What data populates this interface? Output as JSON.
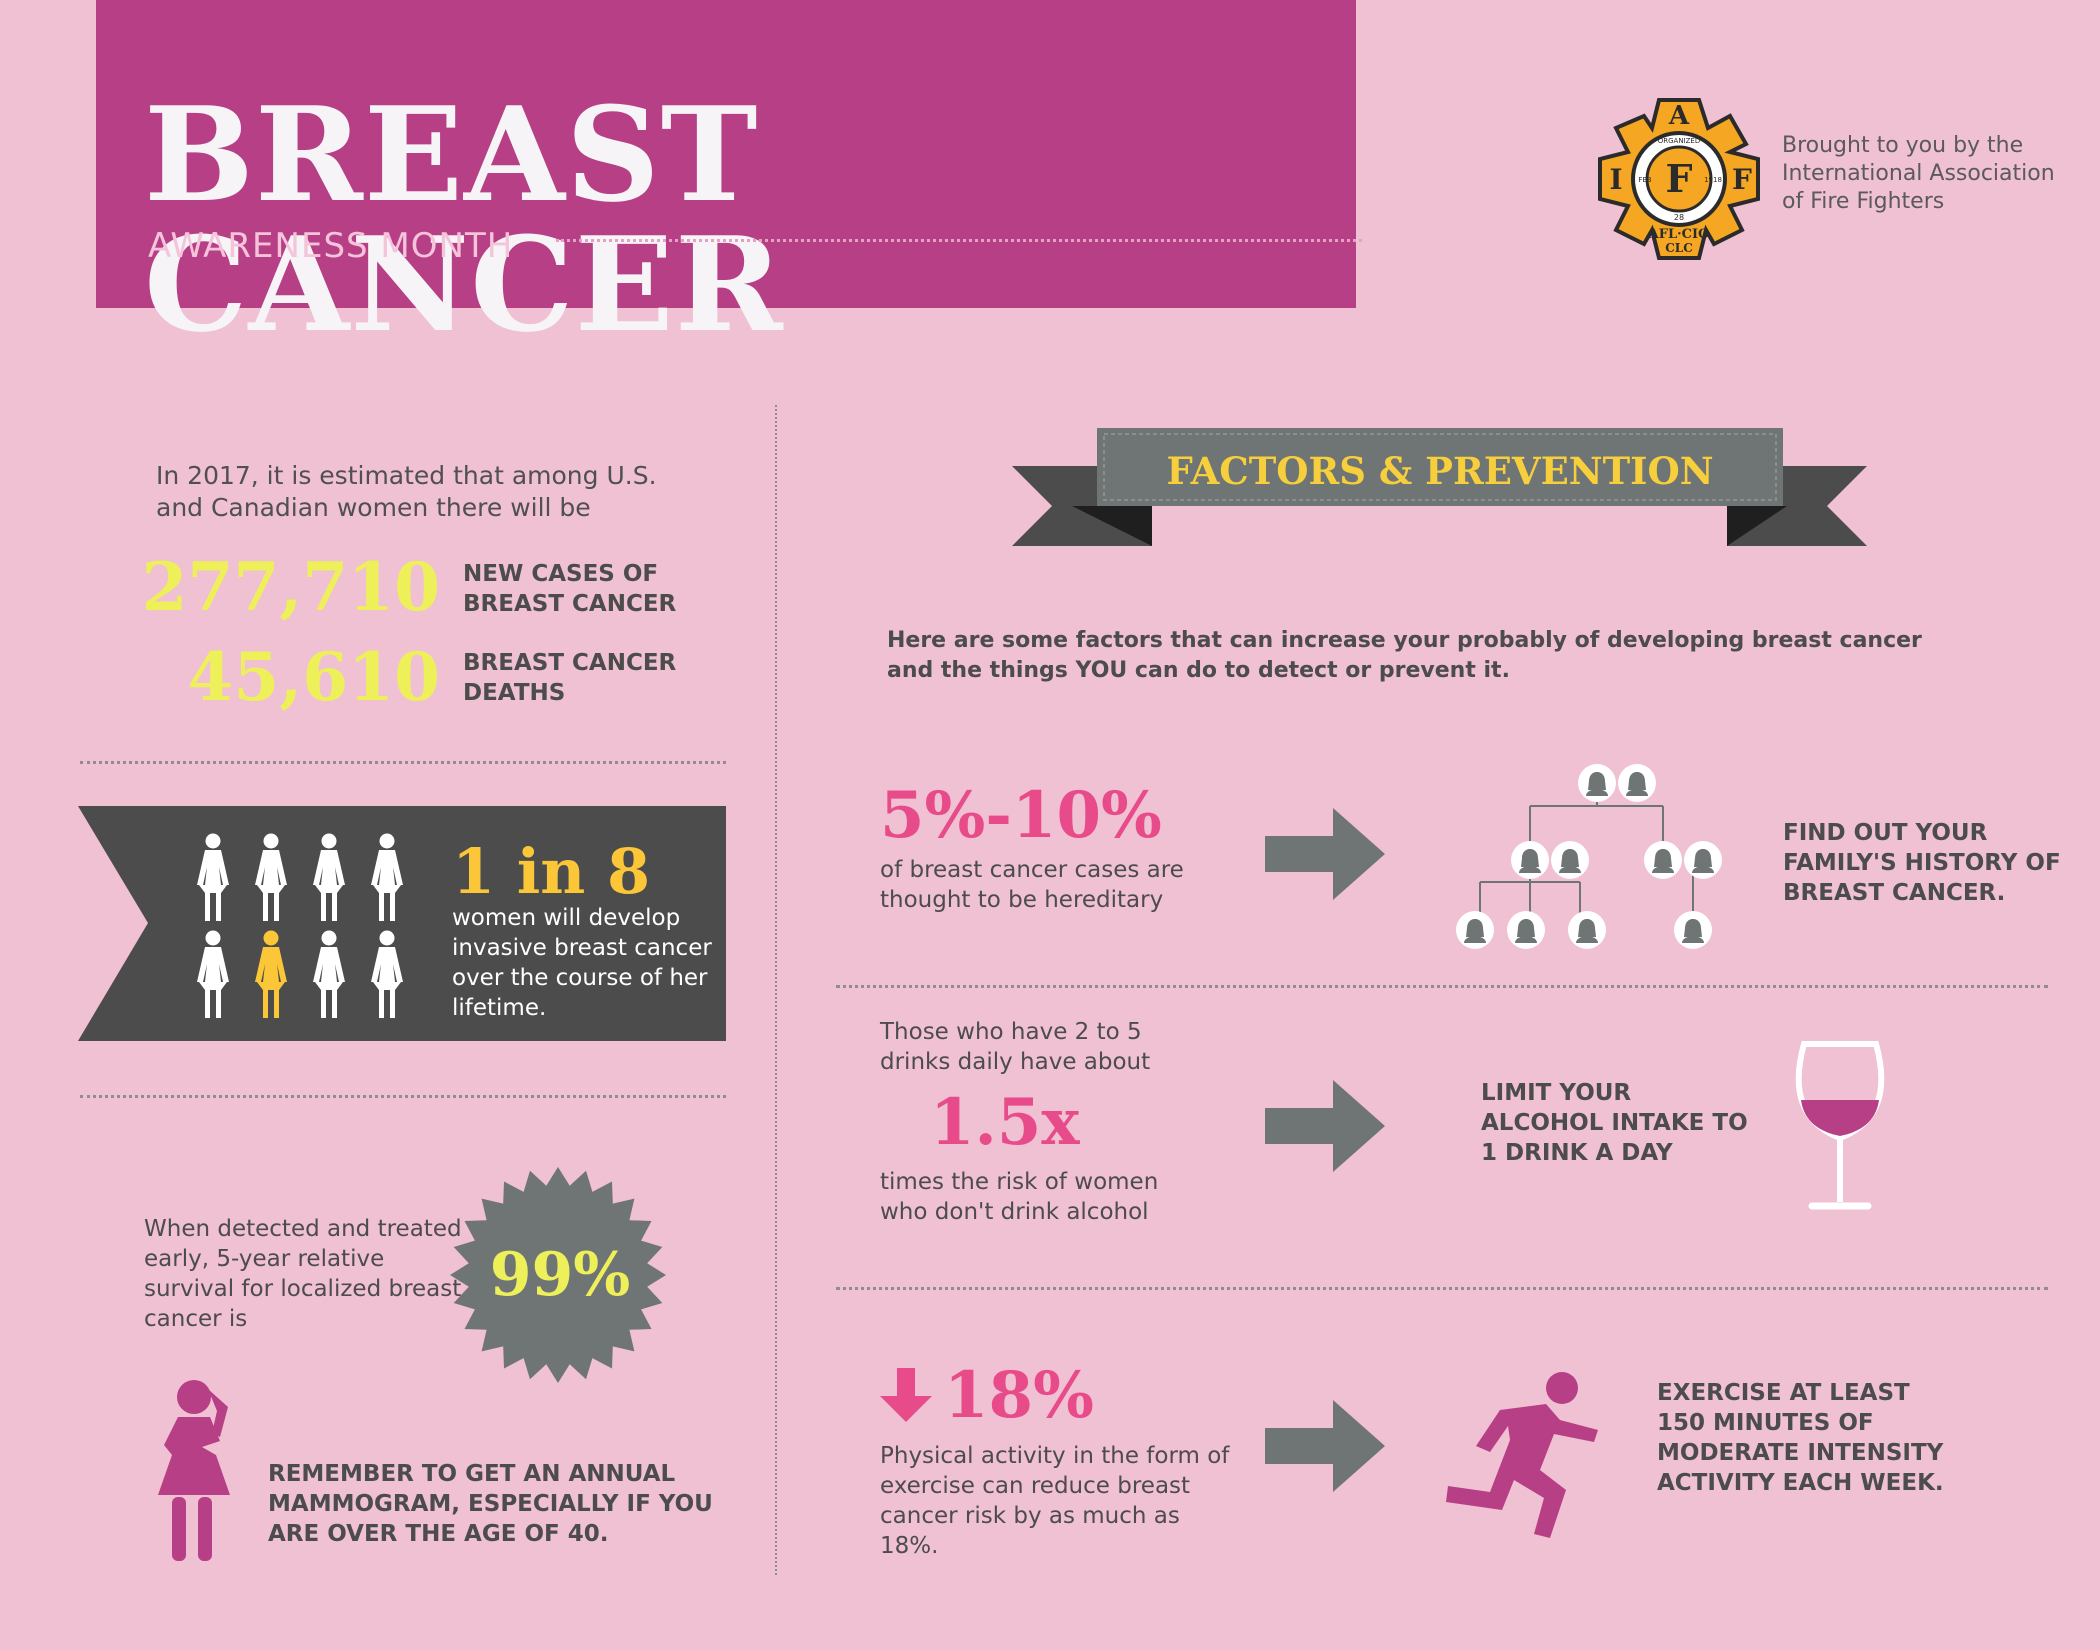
{
  "header": {
    "title": "BREAST CANCER",
    "subtitle": "AWARENESS MONTH",
    "brought_by": "Brought to you by the International Association of Fire Fighters"
  },
  "logo": {
    "top_letter": "A",
    "left_letter": "I",
    "center_letter": "F",
    "right_letter": "F",
    "ring_top": "ORGANIZED",
    "ring_left": "FEB",
    "ring_right": "1918",
    "ring_bottom": "28",
    "bottom_line1": "AFL·CIO",
    "bottom_line2": "CLC",
    "colors": {
      "cross": "#f5a623",
      "outline": "#2b2b2b"
    }
  },
  "stats": {
    "intro": "In 2017, it is estimated that among U.S. and Canadian women there will be",
    "new_cases_value": "277,710",
    "new_cases_label": "NEW CASES OF BREAST CANCER",
    "deaths_value": "45,610",
    "deaths_label": "BREAST CANCER DEATHS"
  },
  "ratio": {
    "headline": "1 in 8",
    "text": "women will develop invasive breast cancer over the course of her lifetime.",
    "total_figures": 8,
    "highlighted_index": 5
  },
  "survival": {
    "text": "When detected and treated early, 5-year relative survival for localized breast cancer is",
    "value": "99%"
  },
  "mammogram": {
    "text": "REMEMBER TO GET AN ANNUAL MAMMOGRAM, ESPECIALLY IF YOU ARE OVER THE AGE OF 40."
  },
  "factors": {
    "title": "FACTORS & PREVENTION",
    "intro": "Here are some factors that can increase your probably of developing breast cancer and the things YOU can do to detect or prevent it.",
    "items": [
      {
        "value": "5%-10%",
        "text": "of breast cancer cases are thought to be hereditary",
        "action": "FIND OUT YOUR FAMILY'S HISTORY OF BREAST CANCER.",
        "icon": "family-tree-icon"
      },
      {
        "pre_text": "Those who have 2 to 5 drinks daily have about",
        "value": "1.5x",
        "text": "times the risk of women who don't drink alcohol",
        "action": "LIMIT YOUR ALCOHOL INTAKE TO 1 DRINK A DAY",
        "icon": "wine-glass-icon"
      },
      {
        "value": "18%",
        "text": "Physical activity in the form of exercise can reduce breast cancer risk by as much as 18%.",
        "action": "EXERCISE AT LEAST 150 MINUTES OF MODERATE INTENSITY ACTIVITY EACH WEEK.",
        "icon": "running-person-icon"
      }
    ]
  },
  "colors": {
    "background": "#f0c0d3",
    "header": "#b73f86",
    "magenta": "#b73f86",
    "pink_accent": "#e84b8a",
    "yellow": "#eef05a",
    "gold": "#fbc738",
    "dark_gray": "#4b4c4b",
    "gray": "#6f7574"
  }
}
